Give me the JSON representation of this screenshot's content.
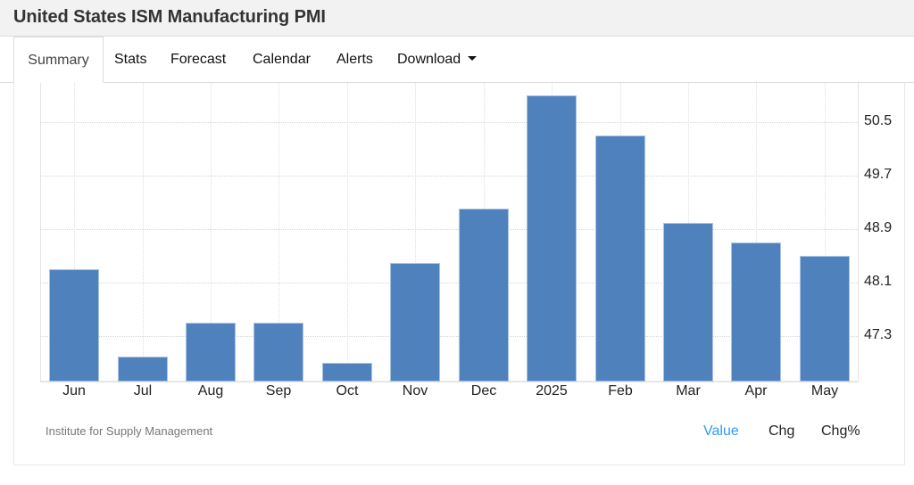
{
  "header": {
    "title": "United States ISM Manufacturing PMI"
  },
  "tabs": [
    {
      "label": "Summary",
      "active": true
    },
    {
      "label": "Stats"
    },
    {
      "label": "Forecast"
    },
    {
      "label": "Calendar"
    },
    {
      "label": "Alerts"
    },
    {
      "label": "Download",
      "dropdown": true,
      "icon": "caret-down-icon"
    }
  ],
  "chart": {
    "source": "Institute for Supply Management",
    "toggles": [
      {
        "label": "Value",
        "active": true
      },
      {
        "label": "Chg"
      },
      {
        "label": "Chg%"
      }
    ],
    "y_ticks": [
      "50.5",
      "49.7",
      "48.9",
      "48.1",
      "47.3"
    ],
    "bar_color": "#4f81bd",
    "active_toggle_color": "#2e9af0"
  },
  "chart_data": {
    "type": "bar",
    "title": "United States ISM Manufacturing PMI",
    "categories": [
      "Jun",
      "Jul",
      "Aug",
      "Sep",
      "Oct",
      "Nov",
      "Dec",
      "2025",
      "Feb",
      "Mar",
      "Apr",
      "May"
    ],
    "values": [
      48.3,
      47.0,
      47.5,
      47.5,
      46.9,
      48.4,
      49.2,
      50.9,
      50.3,
      49.0,
      48.7,
      48.5
    ],
    "xlabel": "",
    "ylabel": "",
    "y_ticks": [
      47.3,
      48.1,
      48.9,
      49.7,
      50.5
    ],
    "ylim": [
      46.6,
      51.3
    ],
    "y_axis_position": "right",
    "grid": true,
    "legend": "none",
    "source": "Institute for Supply Management"
  }
}
